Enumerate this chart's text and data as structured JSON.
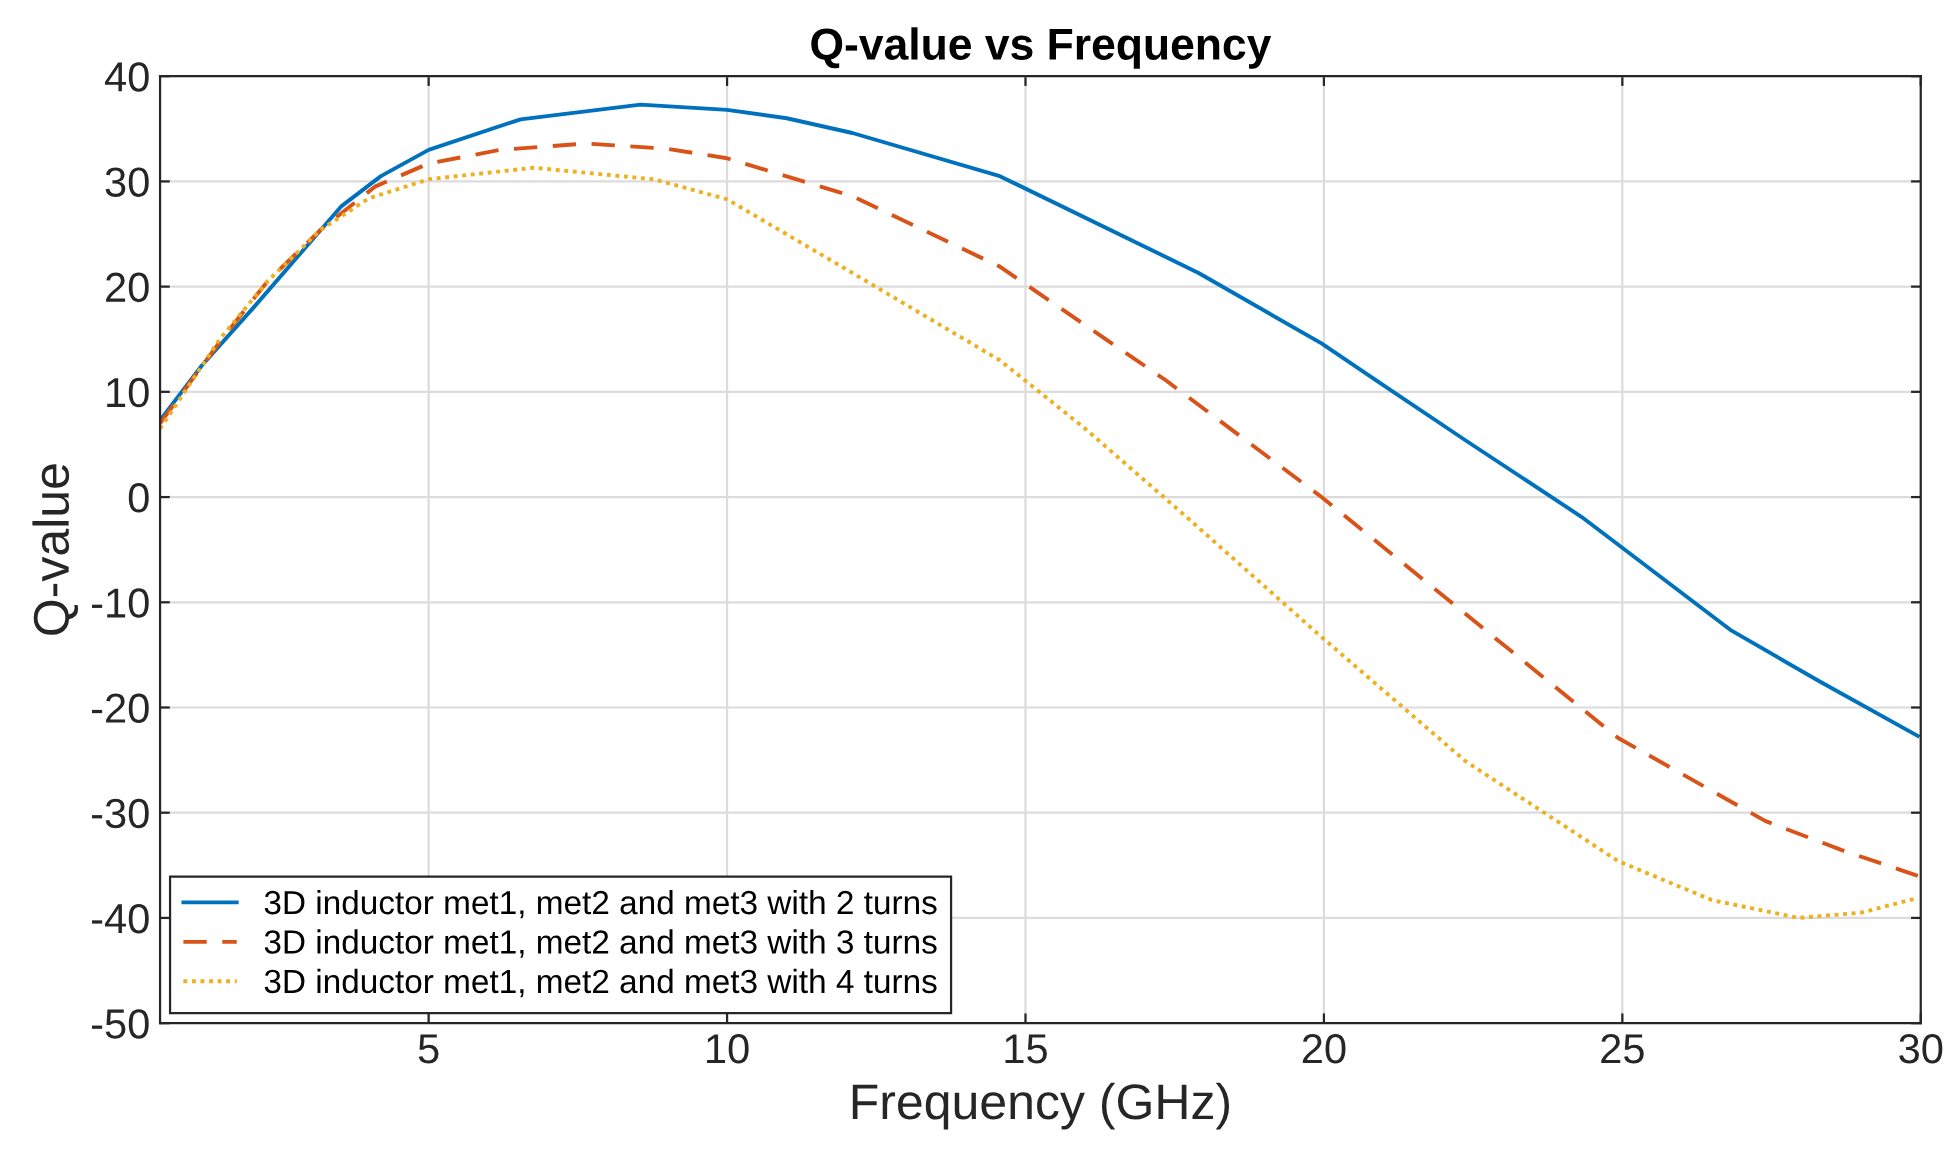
{
  "chart_data": {
    "type": "line",
    "title": "Q-value vs Frequency",
    "xlabel": "Frequency (GHz)",
    "ylabel": "Q-value",
    "xlim": [
      0.5,
      30
    ],
    "xticks": [
      5,
      10,
      15,
      20,
      25,
      30
    ],
    "ylim": [
      -50,
      40
    ],
    "yticks": [
      -50,
      -40,
      -30,
      -20,
      -10,
      0,
      10,
      20,
      30,
      40
    ],
    "grid": true,
    "legend": "bottom left",
    "series": [
      {
        "name": "3D inductor met1, met2 and met3 with 2 turns",
        "color": "#0072bd",
        "line_style": "solid",
        "x": [
          0.5,
          1.2,
          2.08,
          3.53,
          4.2,
          5,
          6.54,
          8.55,
          10,
          11,
          12.1,
          14.57,
          17.9,
          19.96,
          20.9,
          22.37,
          24.32,
          26.83,
          28.3,
          29.95
        ],
        "values": [
          7.3,
          12.5,
          18.1,
          27.6,
          30.5,
          33.0,
          35.9,
          37.3,
          36.8,
          36.0,
          34.6,
          30.5,
          21.3,
          14.6,
          11.0,
          5.4,
          -1.9,
          -12.7,
          -17.5,
          -22.7
        ]
      },
      {
        "name": "3D inductor met1, met2 and met3 with 3 turns",
        "color": "#d95319",
        "line_style": "dashed",
        "x": [
          0.5,
          1.52,
          2.3,
          3.19,
          4.1,
          5,
          6.2,
          7.65,
          9,
          10,
          12.1,
          14.57,
          17.35,
          19.96,
          22.37,
          24.93,
          27.4,
          28.7,
          29.95
        ],
        "values": [
          7.0,
          14.9,
          20.5,
          25.4,
          29.5,
          31.7,
          33.0,
          33.6,
          33.1,
          32.2,
          28.6,
          21.9,
          11.1,
          0,
          -11.1,
          -22.9,
          -30.8,
          -33.6,
          -36.0
        ]
      },
      {
        "name": "3D inductor met1, met2 and met3 with 4 turns",
        "color": "#edb120",
        "line_style": "dotted",
        "x": [
          0.5,
          1.5,
          2.3,
          3.19,
          4,
          5,
          6.76,
          8.77,
          10,
          12.1,
          14.57,
          16,
          17.7,
          19.96,
          22.37,
          24.93,
          26.5,
          27.95,
          29,
          29.95
        ],
        "values": [
          6.5,
          15.0,
          20.5,
          25.4,
          28.4,
          30.2,
          31.3,
          30.2,
          28.3,
          21.3,
          13.0,
          6.5,
          -1.9,
          -13.3,
          -25.1,
          -34.6,
          -38.3,
          -40.0,
          -39.5,
          -38.1
        ]
      }
    ]
  }
}
